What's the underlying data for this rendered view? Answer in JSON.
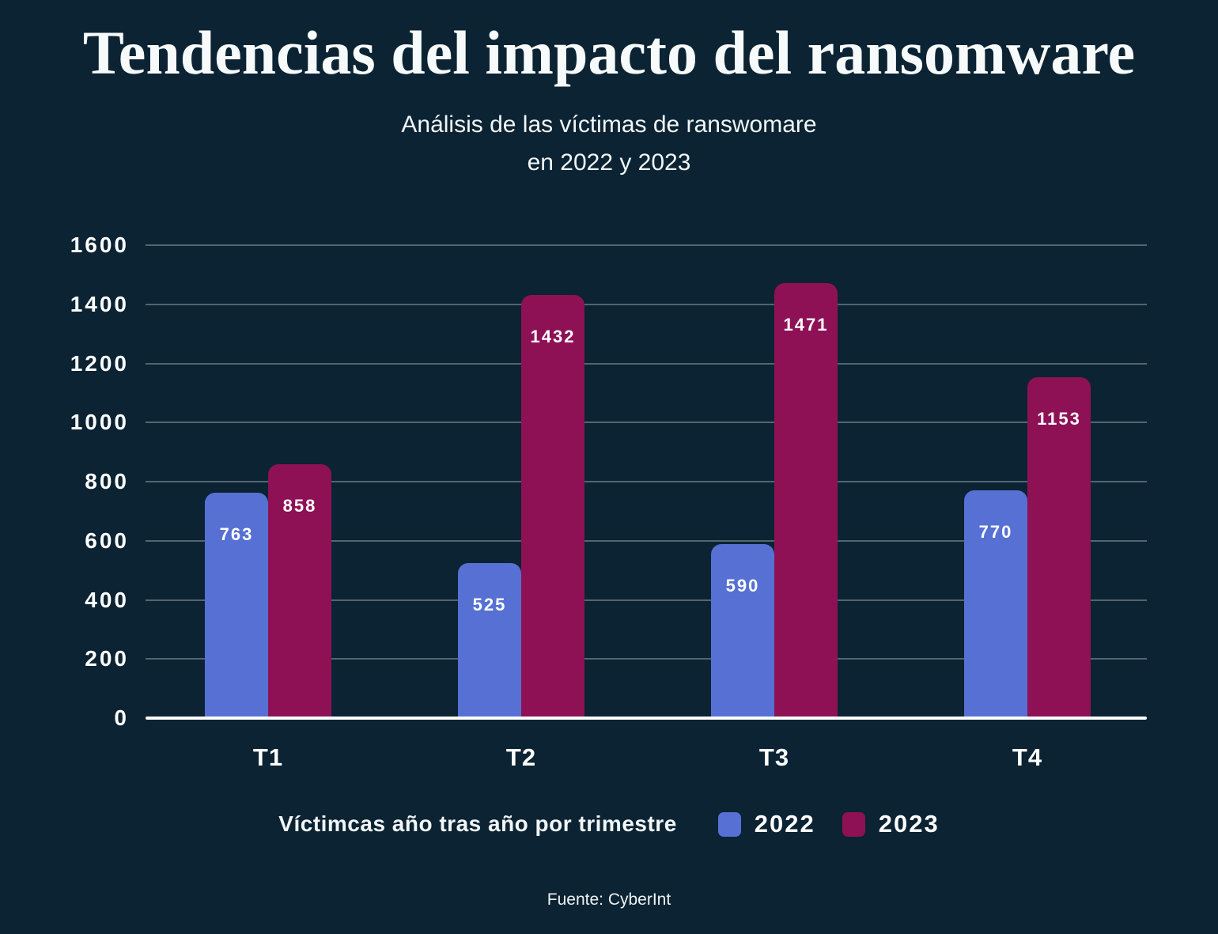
{
  "page": {
    "title": "Tendencias del impacto del ransomware",
    "subtitle_line1": "Análisis de las víctimas de ranswomare",
    "subtitle_line2": "en 2022 y 2023",
    "footer": "Fuente: CyberInt"
  },
  "colors": {
    "background": "#0b2332",
    "series_2022": "#5671d3",
    "series_2023": "#8e1156",
    "grid": "rgba(255,255,255,0.30)",
    "axis": "#ffffff",
    "text": "#ffffff"
  },
  "legend": {
    "label": "Víctimcas año tras año por trimestre",
    "items": [
      {
        "name": "2022",
        "color": "#5671d3"
      },
      {
        "name": "2023",
        "color": "#8e1156"
      }
    ]
  },
  "chart_data": {
    "type": "bar",
    "title": "Tendencias del impacto del ransomware",
    "subtitle": "Análisis de las víctimas de ranswomare en 2022 y 2023",
    "categories": [
      "T1",
      "T2",
      "T3",
      "T4"
    ],
    "series": [
      {
        "name": "2022",
        "color": "#5671d3",
        "values": [
          763,
          525,
          590,
          770
        ]
      },
      {
        "name": "2023",
        "color": "#8e1156",
        "values": [
          858,
          1432,
          1471,
          1153
        ]
      }
    ],
    "xlabel": "",
    "ylabel": "",
    "ylim": [
      0,
      1600
    ],
    "yticks": [
      0,
      200,
      400,
      600,
      800,
      1000,
      1200,
      1400,
      1600
    ],
    "grid": true,
    "bar_value_labels": true,
    "legend_position": "bottom",
    "source": "Fuente: CyberInt"
  }
}
